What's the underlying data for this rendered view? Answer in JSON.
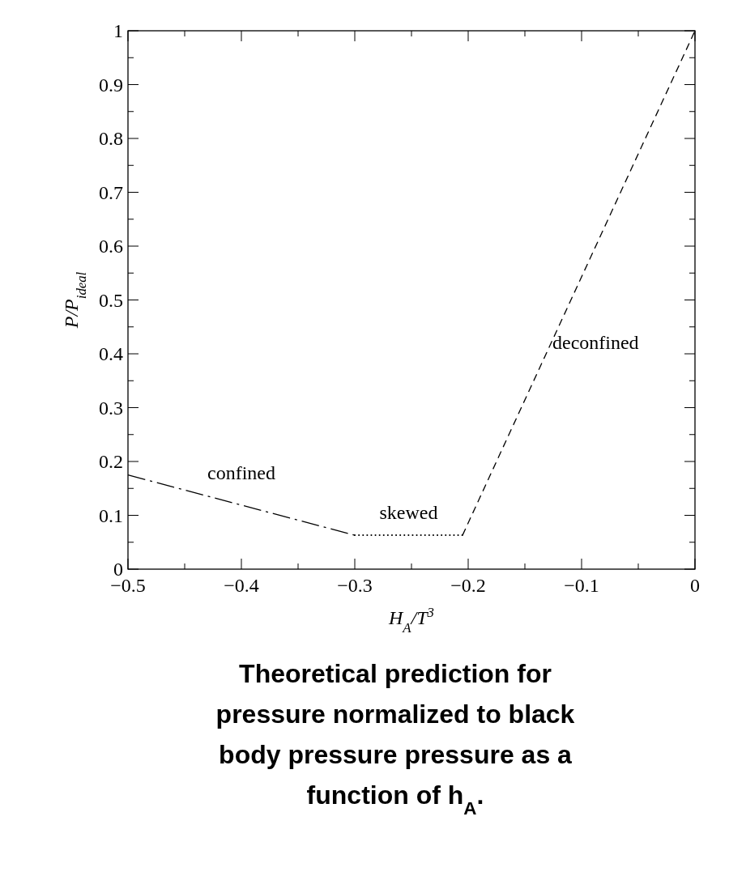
{
  "chart_data": {
    "type": "line",
    "title": "Theoretical prediction for pressure normalized to black body pressure pressure as a function of h$_{A}$.",
    "xlabel": "H$_{A}$/T$^{3}$",
    "ylabel": "P/P$_{ideal}$",
    "xlim": [
      -0.5,
      0
    ],
    "ylim": [
      0,
      1
    ],
    "xticks": [
      {
        "value": -0.5,
        "label": "−0.5"
      },
      {
        "value": -0.45,
        "label": null
      },
      {
        "value": -0.4,
        "label": "−0.4"
      },
      {
        "value": -0.35,
        "label": null
      },
      {
        "value": -0.3,
        "label": "−0.3"
      },
      {
        "value": -0.25,
        "label": null
      },
      {
        "value": -0.2,
        "label": "−0.2"
      },
      {
        "value": -0.15,
        "label": null
      },
      {
        "value": -0.1,
        "label": "−0.1"
      },
      {
        "value": -0.05,
        "label": null
      },
      0
    ],
    "yticks": [
      0,
      {
        "value": 0.05,
        "label": null
      },
      0.1,
      {
        "value": 0.15,
        "label": null
      },
      0.2,
      {
        "value": 0.25,
        "label": null
      },
      0.3,
      {
        "value": 0.35,
        "label": null
      },
      0.4,
      {
        "value": 0.45,
        "label": null
      },
      0.5,
      {
        "value": 0.55,
        "label": null
      },
      0.6,
      {
        "value": 0.65,
        "label": null
      },
      0.7,
      {
        "value": 0.75,
        "label": null
      },
      0.8,
      {
        "value": 0.85,
        "label": null
      },
      0.9,
      {
        "value": 0.95,
        "label": null
      },
      1
    ],
    "grid": false,
    "marker": "none",
    "annotations": [
      {
        "text": "confined",
        "x": -0.4,
        "y": 0.119
      },
      {
        "text": "skewed",
        "x": -0.2525,
        "y": 0.063
      },
      {
        "text": "deconfined",
        "x": -0.13,
        "y": 0.406
      }
    ],
    "series": [
      {
        "color": "#000000",
        "line_style": "dashdot",
        "x": [
          -0.5,
          -0.3
        ],
        "values": [
          0.175,
          0.063
        ]
      },
      {
        "color": "#000000",
        "line_style": "dotted",
        "x": [
          -0.3,
          -0.205
        ],
        "values": [
          0.063,
          0.063
        ]
      },
      {
        "color": "#000000",
        "line_style": "dashed",
        "x": [
          -0.205,
          0
        ],
        "values": [
          0.063,
          1
        ]
      }
    ]
  }
}
